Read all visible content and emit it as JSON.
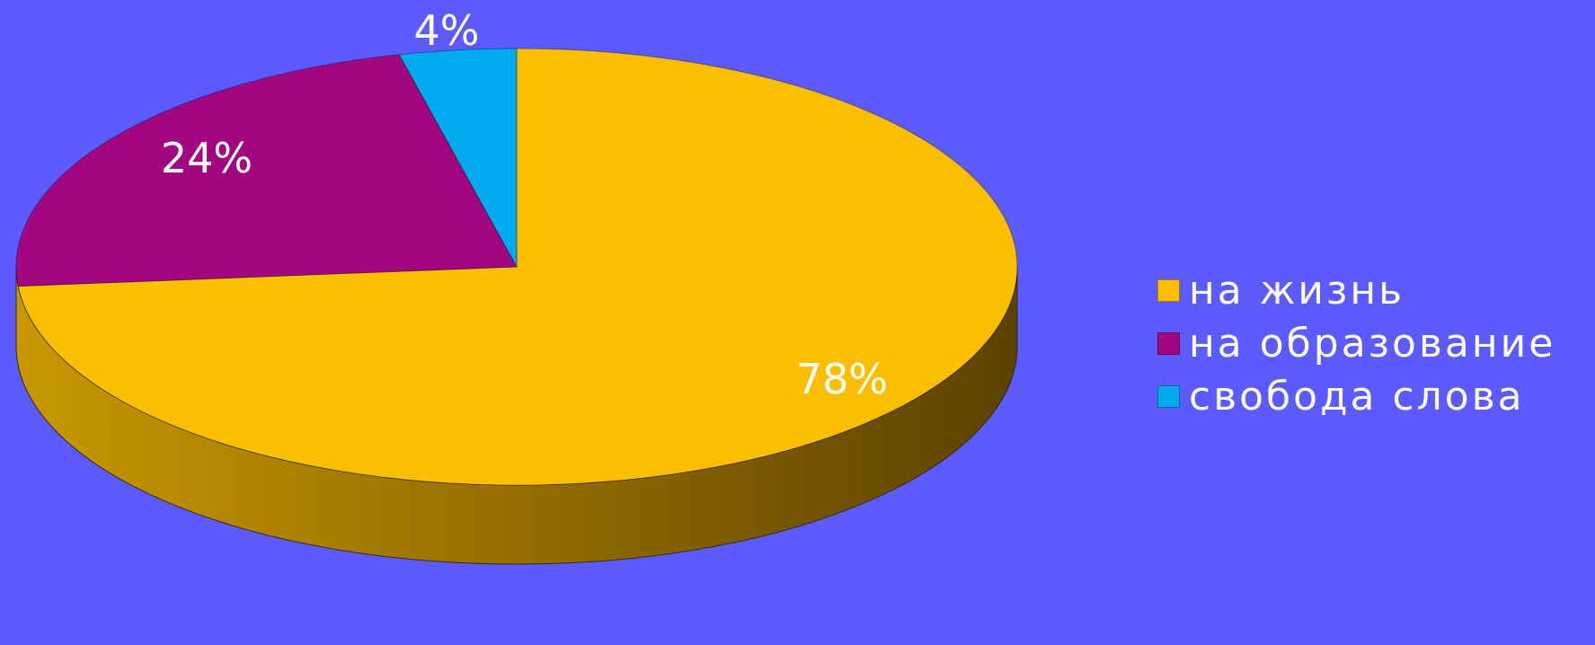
{
  "chart_data": {
    "type": "pie",
    "style": "3d",
    "categories": [
      "на жизнь",
      "на образование",
      "свобода слова"
    ],
    "values": [
      78,
      24,
      4
    ],
    "labels": [
      "78%",
      "24%",
      "4%"
    ],
    "colors": [
      "#fbbf00",
      "#a2077f",
      "#00aaed"
    ],
    "legend_position": "right"
  },
  "background_color": "#5b5bff"
}
